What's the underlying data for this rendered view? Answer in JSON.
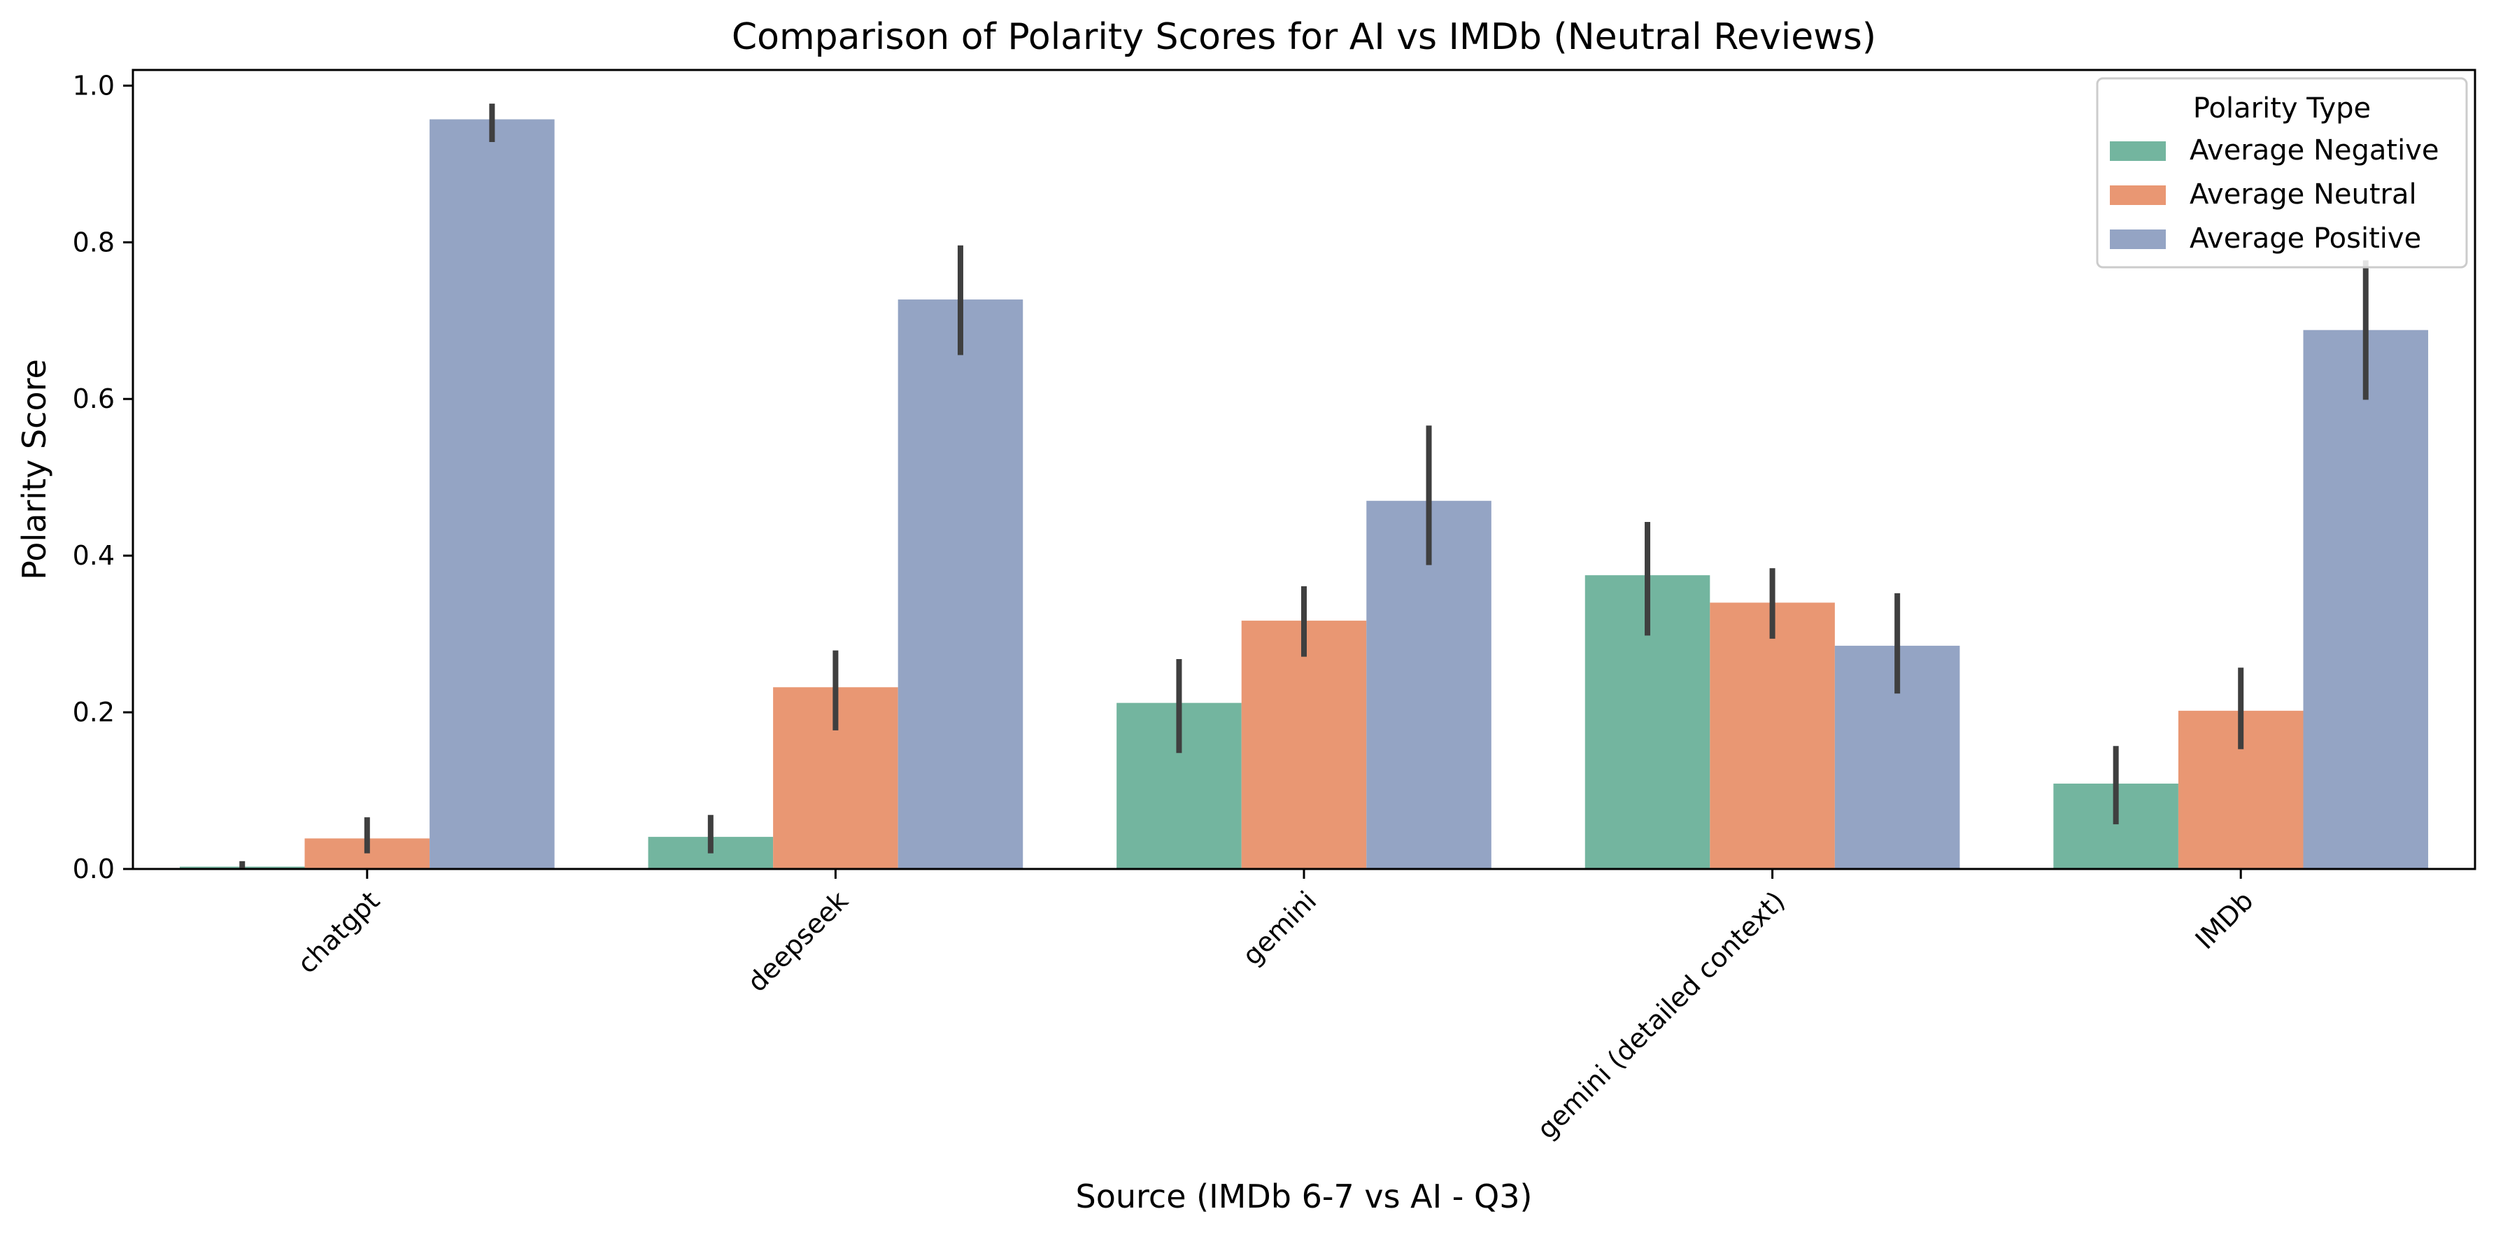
{
  "chart_data": {
    "type": "bar",
    "title": "Comparison of Polarity Scores for AI vs IMDb (Neutral Reviews)",
    "xlabel": "Source (IMDb 6-7 vs AI - Q3)",
    "ylabel": "Polarity Score",
    "ylim": [
      0.0,
      1.02
    ],
    "yticks": [
      "0.0",
      "0.2",
      "0.4",
      "0.6",
      "0.8",
      "1.0"
    ],
    "categories": [
      "chatgpt",
      "deepseek",
      "gemini",
      "gemini (detailed context)",
      "IMDb"
    ],
    "legend": {
      "title": "Polarity Type",
      "placement": "top-right"
    },
    "series": [
      {
        "name": "Average Negative",
        "color": "#73b59f",
        "values": [
          0.003,
          0.041,
          0.212,
          0.375,
          0.109
        ],
        "error_low": [
          0.0,
          0.02,
          0.148,
          0.298,
          0.057
        ],
        "error_high": [
          0.01,
          0.069,
          0.268,
          0.443,
          0.157
        ]
      },
      {
        "name": "Average Neutral",
        "color": "#e99773",
        "values": [
          0.039,
          0.232,
          0.317,
          0.34,
          0.202
        ],
        "error_low": [
          0.02,
          0.177,
          0.271,
          0.294,
          0.153
        ],
        "error_high": [
          0.066,
          0.279,
          0.361,
          0.384,
          0.257
        ]
      },
      {
        "name": "Average Positive",
        "color": "#94a4c4",
        "values": [
          0.957,
          0.727,
          0.47,
          0.285,
          0.688
        ],
        "error_low": [
          0.928,
          0.656,
          0.388,
          0.224,
          0.599
        ],
        "error_high": [
          0.977,
          0.796,
          0.566,
          0.352,
          0.777
        ]
      }
    ],
    "grid": false
  }
}
